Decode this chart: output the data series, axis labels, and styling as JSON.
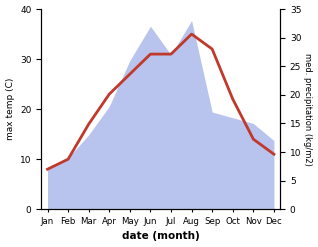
{
  "months": [
    "Jan",
    "Feb",
    "Mar",
    "Apr",
    "May",
    "Jun",
    "Jul",
    "Aug",
    "Sep",
    "Oct",
    "Nov",
    "Dec"
  ],
  "max_temp": [
    8,
    10,
    17,
    23,
    27,
    31,
    31,
    35,
    32,
    22,
    14,
    11
  ],
  "precipitation": [
    7,
    9,
    13,
    18,
    26,
    32,
    27,
    33,
    17,
    16,
    15,
    12
  ],
  "temp_color": "#c0392b",
  "precip_color": "#b8c4ee",
  "xlabel": "date (month)",
  "ylabel_left": "max temp (C)",
  "ylabel_right": "med. precipitation (kg/m2)",
  "ylim_left": [
    0,
    40
  ],
  "ylim_right": [
    0,
    35
  ],
  "yticks_left": [
    0,
    10,
    20,
    30,
    40
  ],
  "yticks_right": [
    0,
    5,
    10,
    15,
    20,
    25,
    30,
    35
  ],
  "background_color": "#ffffff",
  "line_width": 2.0
}
